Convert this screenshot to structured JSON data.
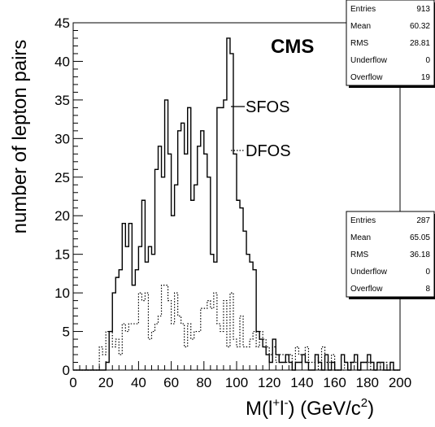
{
  "chart_data": {
    "type": "histogram",
    "ylabel": "number of lepton pairs",
    "xlabel_parts": {
      "base": "M(l",
      "sup_plus": "+",
      "mid": "l",
      "sup_minus": "-",
      "unit": ") (GeV/c",
      "sup_2": "2",
      "end": ")"
    },
    "xlim": [
      0,
      200
    ],
    "ylim": [
      0,
      45
    ],
    "bin_width": 2,
    "x_ticks": [
      0,
      20,
      40,
      60,
      80,
      100,
      120,
      140,
      160,
      180,
      200
    ],
    "x_tick_labels": [
      "0",
      "20",
      "40",
      "60",
      "80",
      "100",
      "120",
      "140",
      "160",
      "180",
      "200"
    ],
    "y_ticks": [
      0,
      5,
      10,
      15,
      20,
      25,
      30,
      35,
      40,
      45
    ],
    "y_tick_labels": [
      "0",
      "5",
      "10",
      "15",
      "20",
      "25",
      "30",
      "35",
      "40",
      "45"
    ],
    "experiment_label": "CMS",
    "series": [
      {
        "name": "SFOS",
        "style": "solid",
        "values": [
          0,
          0,
          0,
          0,
          0,
          0,
          0,
          0,
          0,
          0,
          1,
          5,
          10,
          12,
          13,
          19,
          16,
          19,
          11,
          13,
          16,
          22,
          14,
          16,
          15,
          26,
          29,
          25,
          35,
          28,
          20,
          24,
          31,
          32,
          28,
          34,
          22,
          24,
          29,
          31,
          28,
          25,
          15,
          14,
          34,
          34,
          35,
          43,
          41,
          28,
          22,
          21,
          18,
          15,
          14,
          13,
          5,
          4,
          3,
          2,
          1,
          4,
          2,
          1,
          1,
          2,
          1,
          0,
          1,
          1,
          2,
          1,
          0,
          0,
          2,
          1,
          0,
          2,
          0,
          1,
          0,
          0,
          2,
          1,
          0,
          1,
          2,
          0,
          1,
          1,
          2,
          1,
          0,
          1,
          1,
          0,
          0,
          1,
          0,
          0
        ]
      },
      {
        "name": "DFOS",
        "style": "dotted",
        "values": [
          0,
          0,
          0,
          0,
          0,
          0,
          0,
          0,
          3,
          2,
          5,
          5,
          3,
          4,
          2,
          6,
          5,
          6,
          6,
          6,
          10,
          9,
          10,
          4,
          5,
          6,
          7,
          11,
          11,
          9,
          6,
          10,
          7,
          6,
          3,
          6,
          4,
          5,
          5,
          8,
          8,
          9,
          8,
          10,
          6,
          5,
          9,
          3,
          10,
          4,
          3,
          7,
          3,
          3,
          4,
          5,
          3,
          5,
          4,
          3,
          2,
          3,
          1,
          2,
          2,
          1,
          2,
          0,
          3,
          2,
          2,
          3,
          1,
          1,
          2,
          0,
          3,
          1,
          1,
          2,
          0,
          0,
          0,
          1,
          1,
          1,
          1,
          0,
          1,
          1,
          1,
          0,
          0,
          1,
          0,
          1,
          0,
          1,
          0,
          0
        ]
      }
    ]
  },
  "stats": [
    {
      "rows": [
        {
          "label": "Entries",
          "value": "913"
        },
        {
          "label": "Mean",
          "value": "60.32"
        },
        {
          "label": "RMS",
          "value": "28.81"
        },
        {
          "label": "Underflow",
          "value": "0"
        },
        {
          "label": "Overflow",
          "value": "19"
        }
      ]
    },
    {
      "rows": [
        {
          "label": "Entries",
          "value": "287"
        },
        {
          "label": "Mean",
          "value": "65.05"
        },
        {
          "label": "RMS",
          "value": "36.18"
        },
        {
          "label": "Underflow",
          "value": "0"
        },
        {
          "label": "Overflow",
          "value": "8"
        }
      ]
    }
  ]
}
